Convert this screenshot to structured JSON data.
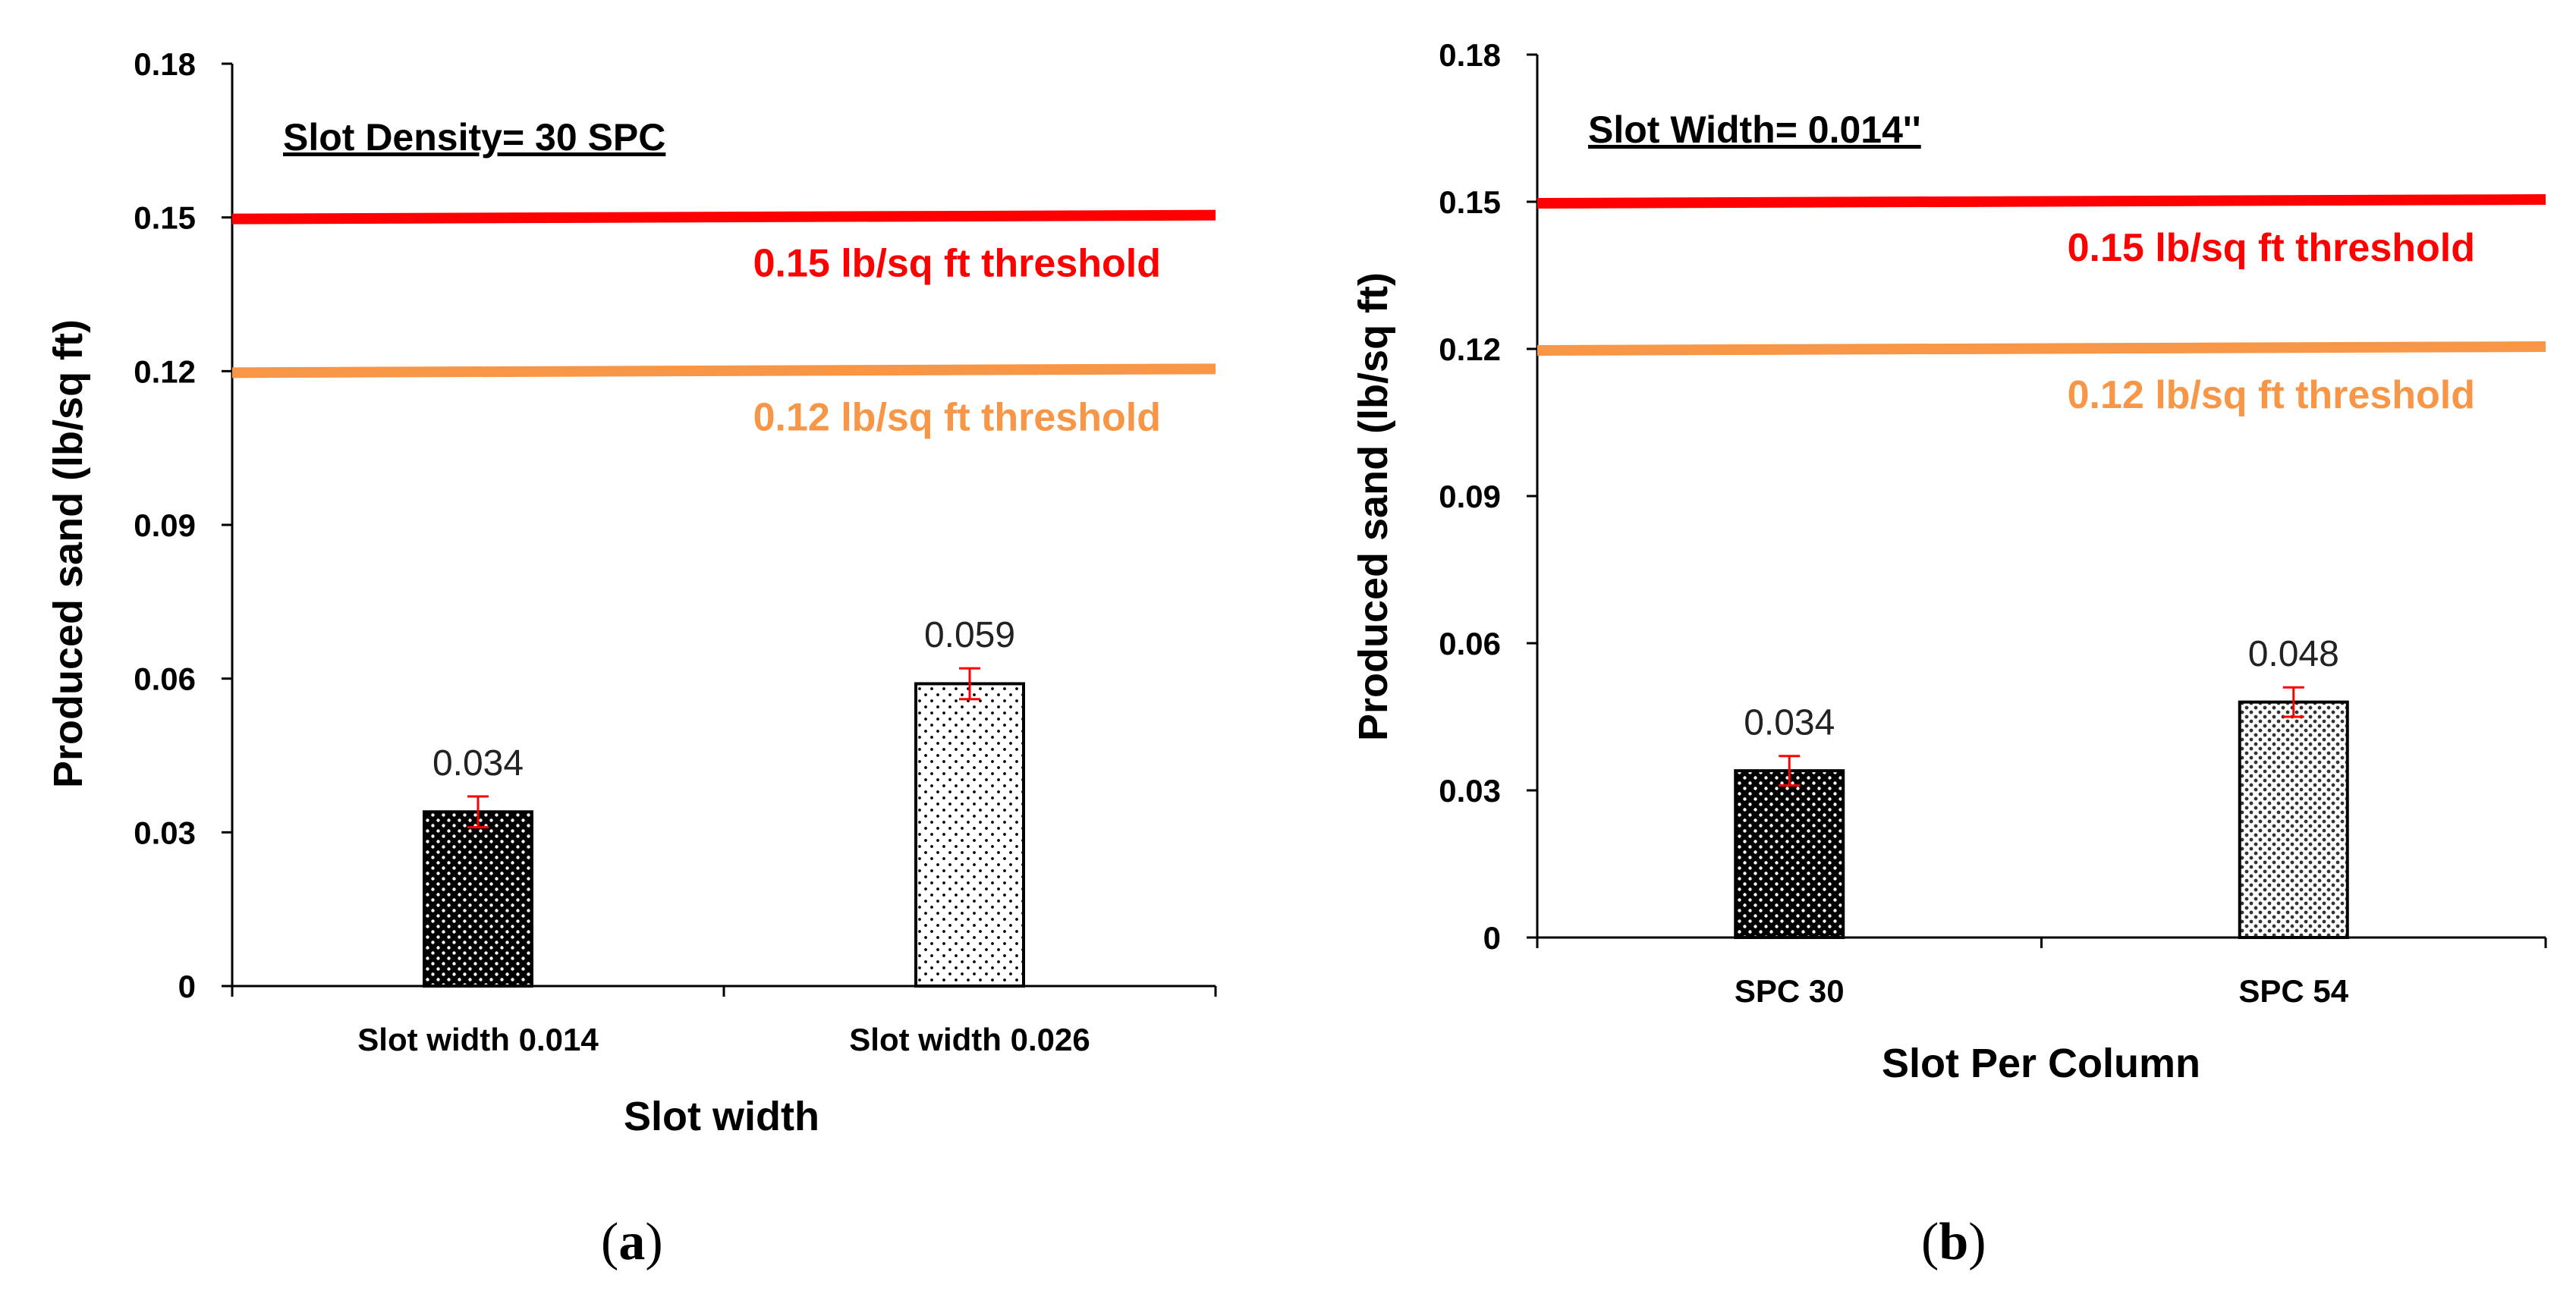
{
  "chart_data": [
    {
      "type": "bar",
      "panel_label": "a",
      "annotation": "Slot Density= 30 SPC",
      "xlabel": "Slot width",
      "ylabel": "Produced sand (lb/sq ft)",
      "ylim": [
        0,
        0.18
      ],
      "yticks": [
        "0",
        "0.03",
        "0.06",
        "0.09",
        "0.12",
        "0.15",
        "0.18"
      ],
      "categories": [
        "Slot width 0.014",
        "Slot width 0.026"
      ],
      "values": [
        0.034,
        0.059
      ],
      "value_labels": [
        "0.034",
        "0.059"
      ],
      "error": [
        0.003,
        0.003
      ],
      "patterns": [
        "dense",
        "sparse"
      ],
      "thresholds": [
        {
          "value": 0.15,
          "label": "0.15 lb/sq ft threshold",
          "color": "#ff0000"
        },
        {
          "value": 0.12,
          "label": "0.12 lb/sq ft threshold",
          "color": "#f79646"
        }
      ],
      "grid": false
    },
    {
      "type": "bar",
      "panel_label": "b",
      "annotation": "Slot Width= 0.014''",
      "xlabel": "Slot Per Column",
      "ylabel": "Produced sand (lb/sq ft)",
      "ylim": [
        0,
        0.18
      ],
      "yticks": [
        "0",
        "0.03",
        "0.06",
        "0.09",
        "0.12",
        "0.15",
        "0.18"
      ],
      "categories": [
        "SPC 30",
        "SPC 54"
      ],
      "values": [
        0.034,
        0.048
      ],
      "value_labels": [
        "0.034",
        "0.048"
      ],
      "error": [
        0.003,
        0.003
      ],
      "patterns": [
        "dense",
        "medium"
      ],
      "thresholds": [
        {
          "value": 0.15,
          "label": "0.15 lb/sq ft threshold",
          "color": "#ff0000"
        },
        {
          "value": 0.12,
          "label": "0.12 lb/sq ft threshold",
          "color": "#f79646"
        }
      ],
      "grid": false
    }
  ],
  "colors": {
    "axis": "#000000",
    "error_bar": "#ff0000",
    "bar_outline": "#000000"
  }
}
